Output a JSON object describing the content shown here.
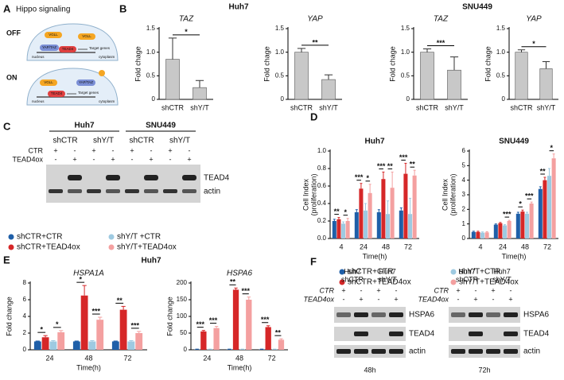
{
  "panel_labels": [
    "A",
    "B",
    "C",
    "D",
    "E",
    "F"
  ],
  "hippo": {
    "title": "Hippo signaling",
    "off": "OFF",
    "on": "ON",
    "vgll": "VGLL",
    "yaptaz": "YAP/TAZ",
    "tead4": "TEAD4",
    "target": "Target genes",
    "nucleus": "nucleus",
    "cytoplasm": "cytoplasm"
  },
  "b_titles": [
    "Huh7",
    "SNU449"
  ],
  "e_title": "Huh7",
  "blot_c": {
    "cell_lines": [
      "Huh7",
      "SNU449"
    ],
    "groups": [
      "shCTR",
      "shY/T",
      "shCTR",
      "shY/T"
    ],
    "rows": [
      {
        "label": "CTR",
        "signs": [
          "+",
          "-",
          "+",
          "-",
          "+",
          "-",
          "+",
          "-"
        ]
      },
      {
        "label": "TEAD4ox",
        "signs": [
          "-",
          "+",
          "-",
          "+",
          "-",
          "+",
          "-",
          "+"
        ]
      }
    ],
    "bands": [
      "TEAD4",
      "actin"
    ]
  },
  "blot_f": [
    {
      "groups": [
        [
          "Huh7",
          "shCTR"
        ],
        [
          "Huh7",
          "shY/T"
        ]
      ],
      "rows": [
        {
          "label": "CTR",
          "signs": [
            "+",
            "-",
            "+",
            "-"
          ]
        },
        {
          "label": "TEAD4ox",
          "signs": [
            "-",
            "+",
            "-",
            "+"
          ]
        }
      ],
      "bands": [
        "HSPA6",
        "TEAD4",
        "actin"
      ],
      "time": "48h"
    },
    {
      "groups": [
        [
          "Huh7",
          "shCTR"
        ],
        [
          "Huh7",
          "shY/T"
        ]
      ],
      "rows": [
        {
          "label": "CTR",
          "signs": [
            "+",
            "-",
            "+",
            "-"
          ]
        },
        {
          "label": "TEAD4ox",
          "signs": [
            "-",
            "+",
            "-",
            "+"
          ]
        }
      ],
      "bands": [
        "HSPA6",
        "TEAD4",
        "actin"
      ],
      "time": "72h"
    }
  ],
  "chart_data": [
    {
      "type": "bar",
      "title": "TAZ",
      "ylabel": "Fold chage",
      "categories": [
        "shCTR",
        "shY/T"
      ],
      "values": [
        0.85,
        0.25
      ],
      "errors": [
        0.45,
        0.15
      ],
      "color": "#c8c8c8",
      "ylim": [
        0,
        1.5
      ],
      "yticks": [
        0,
        0.5,
        {
          "value": 1,
          "label": "1.0"
        },
        1.5
      ],
      "significance": "*"
    },
    {
      "type": "bar",
      "title": "YAP",
      "ylabel": "Fold chage",
      "categories": [
        "shCTR",
        "shY/T"
      ],
      "values": [
        1.0,
        0.42
      ],
      "errors": [
        0.08,
        0.1
      ],
      "color": "#c8c8c8",
      "ylim": [
        0,
        1.5
      ],
      "yticks": [
        0,
        0.5,
        {
          "value": 1,
          "label": "1.0"
        },
        1.5
      ],
      "significance": "**"
    },
    {
      "type": "bar",
      "title": "TAZ",
      "ylabel": "Fold chage",
      "categories": [
        "shCTR",
        "shY/T"
      ],
      "values": [
        1.0,
        0.62
      ],
      "errors": [
        0.07,
        0.28
      ],
      "color": "#c8c8c8",
      "ylim": [
        0,
        1.5
      ],
      "yticks": [
        0,
        0.5,
        {
          "value": 1,
          "label": "1.0"
        },
        1.5
      ],
      "significance": "***"
    },
    {
      "type": "bar",
      "title": "YAP",
      "ylabel": "Fold chage",
      "categories": [
        "shCTR",
        "shY/T"
      ],
      "values": [
        1.0,
        0.65
      ],
      "errors": [
        0.05,
        0.15
      ],
      "color": "#c8c8c8",
      "ylim": [
        0,
        1.5
      ],
      "yticks": [
        0,
        0.5,
        {
          "value": 1,
          "label": "1.0"
        },
        1.5
      ],
      "significance": "*"
    },
    {
      "type": "bar",
      "title": "Huh7",
      "ylabel": [
        "Cell Index",
        "(proliferation)"
      ],
      "xlabel": "Time(h)",
      "categories": [
        "4",
        "24",
        "48",
        "72"
      ],
      "series": [
        {
          "name": "shCTR+CTR",
          "color": "#1f5fa8",
          "values": [
            0.2,
            0.3,
            0.3,
            0.32
          ],
          "errors": [
            0.02,
            0.03,
            0.03,
            0.03
          ]
        },
        {
          "name": "shCTR+TEAD4ox",
          "color": "#d62728",
          "values": [
            0.22,
            0.57,
            0.68,
            0.74
          ],
          "errors": [
            0.02,
            0.06,
            0.08,
            0.12
          ]
        },
        {
          "name": "shY/T+CTR",
          "color": "#9ecae1",
          "values": [
            0.17,
            0.32,
            0.28,
            0.28
          ],
          "errors": [
            0.02,
            0.08,
            0.15,
            0.18
          ]
        },
        {
          "name": "shY/T+TEAD4ox",
          "color": "#f4a0a0",
          "values": [
            0.2,
            0.52,
            0.58,
            0.72
          ],
          "errors": [
            0.03,
            0.1,
            0.18,
            0.06
          ]
        }
      ],
      "ylim": [
        0,
        1
      ],
      "yticks": [
        {
          "value": 0,
          "label": "0.0"
        },
        0.2,
        0.4,
        0.6,
        0.8,
        {
          "value": 1,
          "label": "1.0"
        }
      ],
      "significance": [
        [
          "**",
          "*"
        ],
        [
          "***",
          "*"
        ],
        [
          "***",
          "**"
        ],
        [
          "***",
          "**"
        ]
      ]
    },
    {
      "type": "bar",
      "title": "SNU449",
      "ylabel": [
        "Cell Index",
        "(proliferation)"
      ],
      "xlabel": "Time(h)",
      "categories": [
        "4",
        "24",
        "48",
        "72"
      ],
      "series": [
        {
          "name": "shCTR+CTR",
          "color": "#1f5fa8",
          "values": [
            0.45,
            0.95,
            1.7,
            3.4
          ],
          "errors": [
            0.05,
            0.05,
            0.1,
            0.15
          ]
        },
        {
          "name": "shCTR+TEAD4ox",
          "color": "#d62728",
          "values": [
            0.45,
            1.05,
            1.85,
            4.0
          ],
          "errors": [
            0.05,
            0.05,
            0.1,
            0.2
          ]
        },
        {
          "name": "shY/T+CTR",
          "color": "#9ecae1",
          "values": [
            0.4,
            0.9,
            1.7,
            4.3
          ],
          "errors": [
            0.05,
            0.05,
            0.1,
            0.5
          ]
        },
        {
          "name": "shY/T+TEAD4ox",
          "color": "#f4a0a0",
          "values": [
            0.42,
            1.2,
            2.4,
            5.5
          ],
          "errors": [
            0.05,
            0.05,
            0.1,
            0.3
          ]
        }
      ],
      "ylim": [
        0,
        6
      ],
      "yticks": [
        0,
        1,
        2,
        3,
        4,
        5,
        6
      ],
      "significance": [
        [
          null,
          null
        ],
        [
          null,
          "***"
        ],
        [
          "*",
          "***"
        ],
        [
          "**",
          "*"
        ]
      ]
    },
    {
      "type": "bar",
      "title": "HSPA1A",
      "ylabel": "Fold change",
      "xlabel": "Time(h)",
      "categories": [
        "24",
        "48",
        "72"
      ],
      "series": [
        {
          "name": "shCTR+CTR",
          "color": "#1f5fa8",
          "values": [
            1,
            1,
            1
          ],
          "errors": [
            0.05,
            0.05,
            0.05
          ]
        },
        {
          "name": "shCTR+TEAD4ox",
          "color": "#d62728",
          "values": [
            1.5,
            6.5,
            4.8
          ],
          "errors": [
            0.2,
            1.2,
            0.4
          ]
        },
        {
          "name": "shY/T +CTR",
          "color": "#9ecae1",
          "values": [
            1,
            1,
            1
          ],
          "errors": [
            0.1,
            0.1,
            0.1
          ]
        },
        {
          "name": "shY/T+TEAD4ox",
          "color": "#f4a0a0",
          "values": [
            2.1,
            3.6,
            2.0
          ],
          "errors": [
            0.2,
            0.3,
            0.2
          ]
        }
      ],
      "ylim": [
        0,
        8
      ],
      "yticks": [
        0,
        2,
        4,
        6,
        8
      ],
      "significance": [
        [
          "*",
          "*"
        ],
        [
          "*",
          "***"
        ],
        [
          "**",
          "***"
        ]
      ]
    },
    {
      "type": "bar",
      "title": "HSPA6",
      "ylabel": "Fold change",
      "xlabel": "Time(h)",
      "categories": [
        "24",
        "48",
        "72"
      ],
      "series": [
        {
          "name": "shCTR+CTR",
          "color": "#1f5fa8",
          "values": [
            1,
            1,
            1
          ],
          "errors": [
            1,
            1,
            1
          ]
        },
        {
          "name": "shCTR+TEAD4ox",
          "color": "#d62728",
          "values": [
            55,
            180,
            68
          ],
          "errors": [
            3,
            5,
            4
          ]
        },
        {
          "name": "shY/T +CTR",
          "color": "#9ecae1",
          "values": [
            1,
            1,
            1
          ],
          "errors": [
            1,
            1,
            1
          ]
        },
        {
          "name": "shY/T+TEAD4ox",
          "color": "#f4a0a0",
          "values": [
            65,
            150,
            30
          ],
          "errors": [
            5,
            8,
            3
          ]
        }
      ],
      "ylim": [
        0,
        200
      ],
      "yticks": [
        0,
        50,
        100,
        150,
        200
      ],
      "significance": [
        [
          "***",
          "***"
        ],
        [
          "**",
          "***"
        ],
        [
          "***",
          "**"
        ]
      ]
    }
  ]
}
